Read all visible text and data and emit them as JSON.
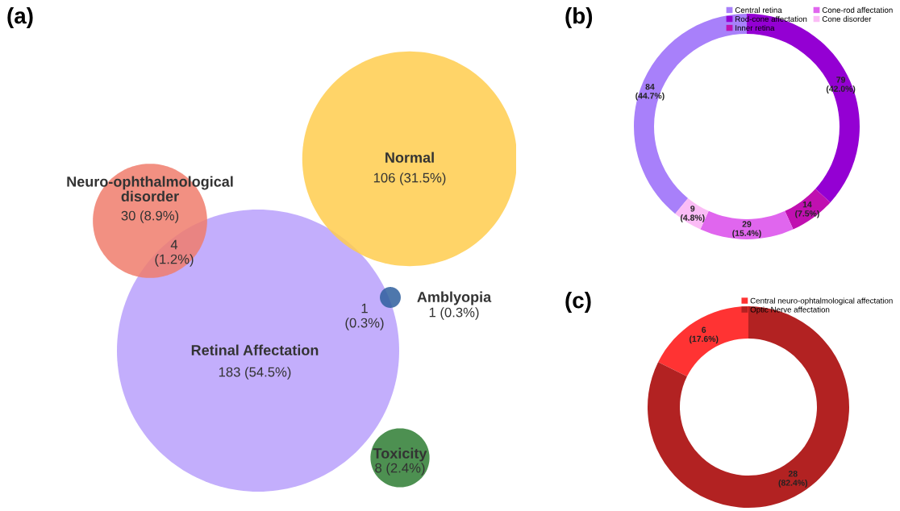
{
  "chart_data": [
    {
      "type": "other",
      "title": "(a)",
      "categories": [
        "Normal",
        "Neuro-ophthalmological\ndisorder",
        "Retinal Affectation",
        "Amblyopia",
        "Toxicity"
      ],
      "values": [
        106,
        30,
        183,
        1,
        8
      ],
      "value_labels": [
        "106 (31.5%)",
        "30 (8.9%)",
        "183 (54.5%)",
        "1 (0.3%)",
        "8 (2.4%)"
      ],
      "colors": [
        "#ffcc4d",
        "#f07c6c",
        "#b9a0fb",
        "#2f5f9e",
        "#2e7d32"
      ],
      "annotations": [
        "4\n(1.2%)",
        "1\n(0.3%)"
      ]
    },
    {
      "type": "donut",
      "title": "(b)",
      "categories": [
        "Central retina",
        "Rod-cone affectation",
        "Inner retina",
        "Cone-rod affectation",
        "Cone disorder"
      ],
      "values": [
        84,
        79,
        14,
        29,
        9
      ],
      "value_labels": [
        "84\n(44.7%)",
        "79\n(42.0%)",
        "14\n(7.5%)",
        "29\n(15.4%)",
        "9\n(4.8%)"
      ],
      "colors": [
        "#a880fa",
        "#9400d3",
        "#c010b0",
        "#e066ee",
        "#fbbcf6"
      ],
      "legend": "top right"
    },
    {
      "type": "donut",
      "title": "(c)",
      "categories": [
        "Central neuro-ophtalmological affectation",
        "Optic Nerve affectation"
      ],
      "values": [
        6,
        28
      ],
      "value_labels": [
        "6\n(17.6%)",
        "28\n(82.4%)"
      ],
      "colors": [
        "#ff3333",
        "#b22222"
      ],
      "legend": "top right"
    }
  ]
}
